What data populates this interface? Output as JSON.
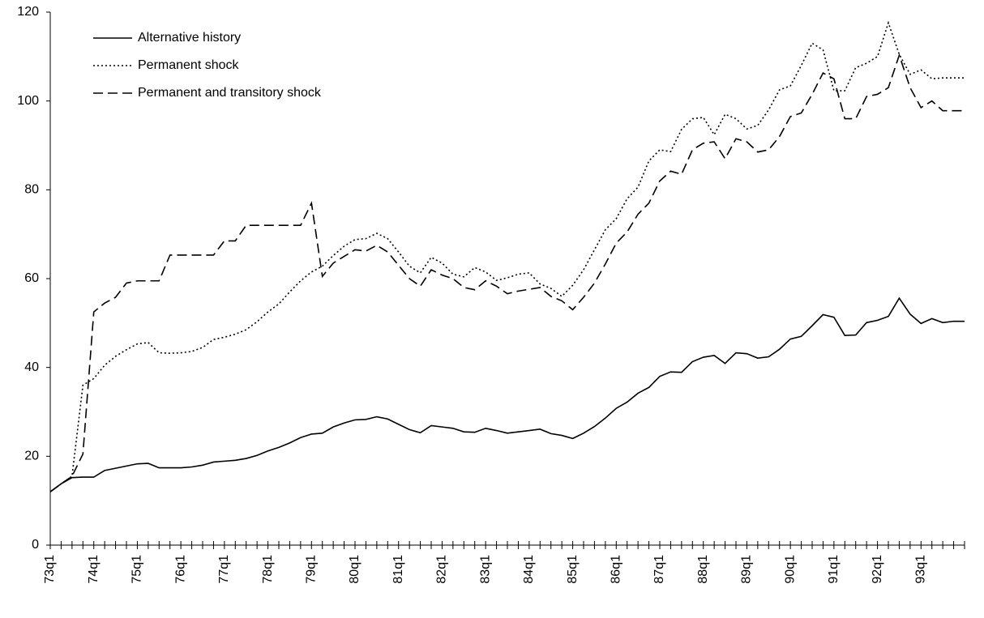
{
  "chart_data": {
    "type": "line",
    "categories": [
      "73q1",
      null,
      null,
      null,
      "74q1",
      null,
      null,
      null,
      "75q1",
      null,
      null,
      null,
      "76q1",
      null,
      null,
      null,
      "77q1",
      null,
      null,
      null,
      "78q1",
      null,
      null,
      null,
      "79q1",
      null,
      null,
      null,
      "80q1",
      null,
      null,
      null,
      "81q1",
      null,
      null,
      null,
      "82q1",
      null,
      null,
      null,
      "83q1",
      null,
      null,
      null,
      "84q1",
      null,
      null,
      null,
      "85q1",
      null,
      null,
      null,
      "86q1",
      null,
      null,
      null,
      "87q1",
      null,
      null,
      null,
      "88q1",
      null,
      null,
      null,
      "89q1",
      null,
      null,
      null,
      "90q1",
      null,
      null,
      null,
      "91q1",
      null,
      null,
      null,
      "92q1",
      null,
      null,
      null,
      "93q1",
      null,
      null,
      null,
      null
    ],
    "series": [
      {
        "name": "Alternative history",
        "color": "#000000",
        "dash": "solid",
        "values": [
          12,
          13.8,
          15.2,
          15.3,
          15.3,
          16.8,
          17.3,
          17.8,
          18.3,
          18.4,
          17.4,
          17.4,
          17.4,
          17.6,
          18,
          18.7,
          18.9,
          19.1,
          19.5,
          20.2,
          21.2,
          22,
          23,
          24.2,
          25,
          25.2,
          26.6,
          27.5,
          28.2,
          28.3,
          28.9,
          28.4,
          27.2,
          26,
          25.3,
          26.9,
          26.6,
          26.3,
          25.5,
          25.4,
          26.3,
          25.8,
          25.2,
          25.5,
          25.8,
          26.1,
          25.1,
          24.7,
          24,
          25.2,
          26.7,
          28.6,
          30.8,
          32.2,
          34.2,
          35.5,
          38,
          39,
          38.9,
          41.3,
          42.3,
          42.7,
          40.9,
          43.3,
          43.1,
          42.1,
          42.4,
          44.1,
          46.4,
          47,
          49.4,
          51.9,
          51.3,
          47.2,
          47.3,
          50.1,
          50.6,
          51.5,
          55.6,
          52,
          49.9,
          51,
          50.1,
          50.4,
          50.4
        ]
      },
      {
        "name": "Permanent shock",
        "color": "#000000",
        "dash": "dotted",
        "values": [
          12,
          13.8,
          15.5,
          36,
          37.5,
          40.5,
          42.5,
          44,
          45.3,
          45.6,
          43.3,
          43.2,
          43.3,
          43.6,
          44.5,
          46.3,
          46.8,
          47.5,
          48.5,
          50.3,
          52.5,
          54.3,
          57,
          59.5,
          61.5,
          62.8,
          65.2,
          67.3,
          68.8,
          69,
          70.2,
          69,
          66,
          62.8,
          61.3,
          64.8,
          63.5,
          61,
          60.4,
          62.5,
          61.5,
          59.6,
          60.2,
          61,
          61.3,
          58.8,
          57.8,
          56,
          58.5,
          62,
          66.5,
          71,
          73.5,
          78,
          80.6,
          86.5,
          89,
          88.6,
          93.6,
          96,
          96.3,
          92.4,
          97,
          96,
          93.7,
          94.5,
          98,
          102.5,
          103.4,
          108,
          113,
          111.5,
          102.3,
          102.3,
          107.5,
          108.5,
          110,
          117.6,
          110.5,
          106,
          107,
          105,
          105.2,
          105.2,
          105.2
        ]
      },
      {
        "name": "Permanent and transitory shock",
        "color": "#000000",
        "dash": "dashed",
        "values": [
          12,
          13.8,
          15.5,
          20.5,
          52.5,
          54.5,
          55.8,
          59,
          59.5,
          59.5,
          59.5,
          65.3,
          65.3,
          65.3,
          65.3,
          65.3,
          68.5,
          68.5,
          72,
          72,
          72,
          72,
          72,
          72,
          77,
          60.5,
          63.5,
          65,
          66.5,
          66.2,
          67.5,
          66,
          63,
          60,
          58.3,
          62,
          60.8,
          60,
          58,
          57.5,
          59.5,
          58.3,
          56.6,
          57.2,
          57.6,
          58,
          56,
          55,
          53,
          55.8,
          59,
          63.3,
          68,
          70.5,
          74.5,
          77,
          82,
          84.2,
          83.5,
          89,
          90.5,
          90.8,
          87,
          91.5,
          90.8,
          88.5,
          89,
          92,
          96.5,
          97.3,
          101.5,
          106.3,
          105,
          96,
          96,
          101,
          101.5,
          103,
          110.3,
          103,
          98.5,
          100,
          97.8,
          97.8,
          97.8
        ]
      }
    ],
    "ylim": [
      0,
      120
    ],
    "yticks": [
      0,
      20,
      40,
      60,
      80,
      100,
      120
    ],
    "grid": false,
    "legend": "top-left"
  }
}
